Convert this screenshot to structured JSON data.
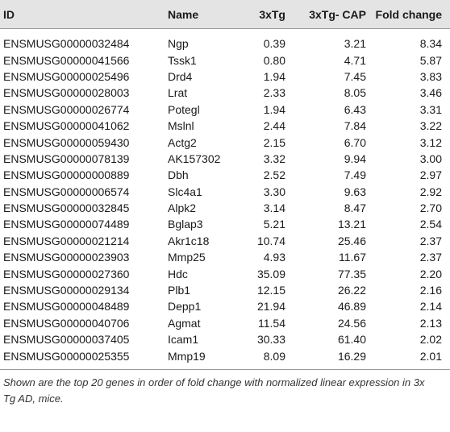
{
  "columns": {
    "id": "ID",
    "name": "Name",
    "tg": "3xTg",
    "cap": "3xTg- CAP",
    "fold": "Fold change"
  },
  "rows": [
    {
      "id": "ENSMUSG00000032484",
      "name": "Ngp",
      "tg": "0.39",
      "cap": "3.21",
      "fold": "8.34"
    },
    {
      "id": "ENSMUSG00000041566",
      "name": "Tssk1",
      "tg": "0.80",
      "cap": "4.71",
      "fold": "5.87"
    },
    {
      "id": "ENSMUSG00000025496",
      "name": "Drd4",
      "tg": "1.94",
      "cap": "7.45",
      "fold": "3.83"
    },
    {
      "id": "ENSMUSG00000028003",
      "name": "Lrat",
      "tg": "2.33",
      "cap": "8.05",
      "fold": "3.46"
    },
    {
      "id": "ENSMUSG00000026774",
      "name": "Potegl",
      "tg": "1.94",
      "cap": "6.43",
      "fold": "3.31"
    },
    {
      "id": "ENSMUSG00000041062",
      "name": "Mslnl",
      "tg": "2.44",
      "cap": "7.84",
      "fold": "3.22"
    },
    {
      "id": "ENSMUSG00000059430",
      "name": "Actg2",
      "tg": "2.15",
      "cap": "6.70",
      "fold": "3.12"
    },
    {
      "id": "ENSMUSG00000078139",
      "name": "AK157302",
      "tg": "3.32",
      "cap": "9.94",
      "fold": "3.00"
    },
    {
      "id": "ENSMUSG00000000889",
      "name": "Dbh",
      "tg": "2.52",
      "cap": "7.49",
      "fold": "2.97"
    },
    {
      "id": "ENSMUSG00000006574",
      "name": "Slc4a1",
      "tg": "3.30",
      "cap": "9.63",
      "fold": "2.92"
    },
    {
      "id": "ENSMUSG00000032845",
      "name": "Alpk2",
      "tg": "3.14",
      "cap": "8.47",
      "fold": "2.70"
    },
    {
      "id": "ENSMUSG00000074489",
      "name": "Bglap3",
      "tg": "5.21",
      "cap": "13.21",
      "fold": "2.54"
    },
    {
      "id": "ENSMUSG00000021214",
      "name": "Akr1c18",
      "tg": "10.74",
      "cap": "25.46",
      "fold": "2.37"
    },
    {
      "id": "ENSMUSG00000023903",
      "name": "Mmp25",
      "tg": "4.93",
      "cap": "11.67",
      "fold": "2.37"
    },
    {
      "id": "ENSMUSG00000027360",
      "name": "Hdc",
      "tg": "35.09",
      "cap": "77.35",
      "fold": "2.20"
    },
    {
      "id": "ENSMUSG00000029134",
      "name": "Plb1",
      "tg": "12.15",
      "cap": "26.22",
      "fold": "2.16"
    },
    {
      "id": "ENSMUSG00000048489",
      "name": "Depp1",
      "tg": "21.94",
      "cap": "46.89",
      "fold": "2.14"
    },
    {
      "id": "ENSMUSG00000040706",
      "name": "Agmat",
      "tg": "11.54",
      "cap": "24.56",
      "fold": "2.13"
    },
    {
      "id": "ENSMUSG00000037405",
      "name": "Icam1",
      "tg": "30.33",
      "cap": "61.40",
      "fold": "2.02"
    },
    {
      "id": "ENSMUSG00000025355",
      "name": "Mmp19",
      "tg": "8.09",
      "cap": "16.29",
      "fold": "2.01"
    }
  ],
  "footnote": "Shown are the top 20 genes in order of fold change with normalized linear expression in 3x Tg AD, mice."
}
